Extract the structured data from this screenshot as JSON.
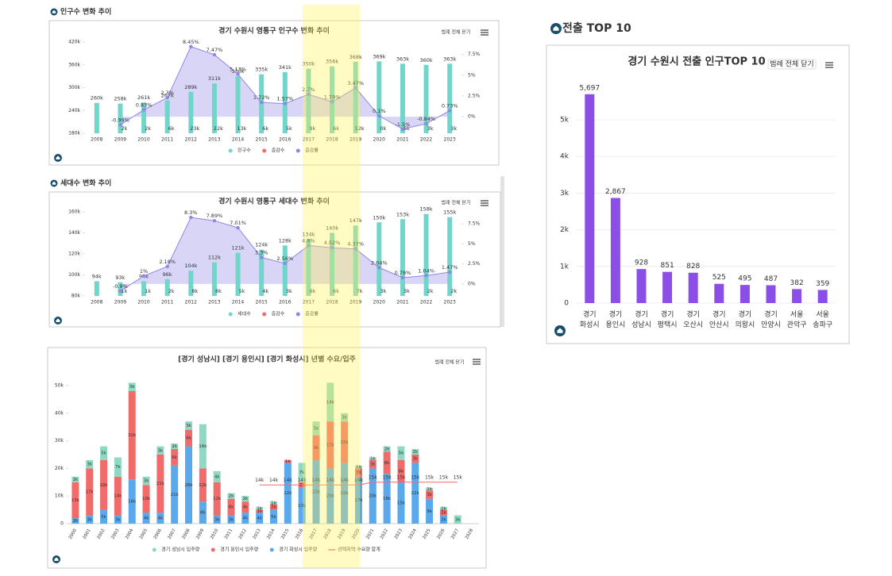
{
  "chart_data": [
    {
      "type": "combo",
      "section": "인구수 변화 추이",
      "title": "경기 수원시 영통구 인구수 변화 추이",
      "legend_button": "범례 전체 닫기",
      "categories": [
        "2008",
        "2009",
        "2010",
        "2011",
        "2012",
        "2013",
        "2014",
        "2015",
        "2016",
        "2017",
        "2018",
        "2019",
        "2020",
        "2021",
        "2022",
        "2023"
      ],
      "series": [
        {
          "name": "인구수",
          "color": "#72d5c9",
          "values": [
            260000,
            258000,
            261000,
            267000,
            289000,
            311000,
            330000,
            335000,
            341000,
            350000,
            356000,
            368000,
            369000,
            363000,
            360000,
            363000
          ],
          "value_labels": [
            "260k",
            "258k",
            "261k",
            "267k",
            "289k",
            "311k",
            "330k",
            "335k",
            "341k",
            "350k",
            "356k",
            "368k",
            "369k",
            "363k",
            "360k",
            "363k"
          ]
        },
        {
          "name": "증감수",
          "color": "#f26b6b",
          "values": [
            null,
            2000,
            2000,
            6000,
            23000,
            22000,
            13000,
            6000,
            5000,
            9000,
            6000,
            12000,
            0,
            5000,
            3000,
            3000
          ],
          "value_labels": [
            null,
            "2k",
            "2k",
            "6k",
            "23k",
            "22k",
            "13k",
            "6k",
            "5k",
            "9k",
            "6k",
            "12k",
            "0k",
            "5k",
            "3k",
            "3k"
          ]
        },
        {
          "name": "증감률",
          "color": "#8f86e8",
          "axis": "y2",
          "values": [
            null,
            -0.99,
            0.83,
            2.3,
            8.45,
            7.47,
            5.13,
            1.72,
            1.57,
            2.7,
            1.79,
            3.47,
            0.1,
            -1.5,
            -0.84,
            0.73
          ],
          "value_labels": [
            null,
            "-0.99%",
            "0.83%",
            "2.3%",
            "8.45%",
            "7.47%",
            "5.13%",
            "1.72%",
            "1.57%",
            "2.7%",
            "1.79%",
            "3.47%",
            "0.1%",
            "-1.5%",
            "-0.84%",
            "0.73%"
          ]
        }
      ],
      "ylim": [
        180000,
        420000
      ],
      "yticks": [
        {
          "value": 180000,
          "label": "180k"
        },
        {
          "value": 240000,
          "label": "240k"
        },
        {
          "value": 300000,
          "label": "300k"
        },
        {
          "value": 360000,
          "label": "360k"
        },
        {
          "value": 420000,
          "label": "420k"
        }
      ],
      "y2lim": [
        -2,
        9
      ],
      "y2ticks": [
        {
          "value": 0,
          "label": "0%"
        },
        {
          "value": 2.5,
          "label": "2.5%"
        },
        {
          "value": 5,
          "label": "5%"
        },
        {
          "value": 7.5,
          "label": "7.5%"
        }
      ],
      "grid": false
    },
    {
      "type": "combo",
      "section": "세대수 변화 추이",
      "title": "경기 수원시 영통구 세대수 변화 추이",
      "legend_button": "범례 전체 닫기",
      "categories": [
        "2008",
        "2009",
        "2010",
        "2011",
        "2012",
        "2013",
        "2014",
        "2015",
        "2016",
        "2017",
        "2018",
        "2019",
        "2020",
        "2021",
        "2022",
        "2023"
      ],
      "series": [
        {
          "name": "세대수",
          "color": "#72d5c9",
          "values": [
            94000,
            93000,
            94000,
            96000,
            104000,
            112000,
            121000,
            124000,
            128000,
            134000,
            140000,
            147000,
            150000,
            153000,
            158000,
            155000
          ],
          "value_labels": [
            "94k",
            "93k",
            "94k",
            "96k",
            "104k",
            "112k",
            "121k",
            "124k",
            "128k",
            "134k",
            "140k",
            "147k",
            "150k",
            "153k",
            "158k",
            "155k"
          ]
        },
        {
          "name": "증감수",
          "color": "#f26b6b",
          "values": [
            null,
            1000,
            1000,
            2000,
            8000,
            8000,
            5000,
            4000,
            3000,
            6000,
            6000,
            7000,
            3000,
            3000,
            2000,
            2000
          ],
          "value_labels": [
            null,
            "1k",
            "1k",
            "2k",
            "8k",
            "8k",
            "5k",
            "4k",
            "3k",
            "6k",
            "6k",
            "7k",
            "3k",
            "3k",
            "2k",
            "2k"
          ]
        },
        {
          "name": "증감률",
          "color": "#8f86e8",
          "axis": "y2",
          "values": [
            null,
            -0.9,
            1,
            2.18,
            8.3,
            7.89,
            7.01,
            3.3,
            2.56,
            4.8,
            4.52,
            4.37,
            2.04,
            0.78,
            1.04,
            1.47
          ],
          "value_labels": [
            null,
            "-0.9%",
            "1%",
            "2.18%",
            "8.3%",
            "7.89%",
            "7.01%",
            "3.3%",
            "2.56%",
            "4.8%",
            "4.52%",
            "4.37%",
            "2.04%",
            "0.78%",
            "1.04%",
            "1.47%"
          ]
        }
      ],
      "ylim": [
        80000,
        160000
      ],
      "yticks": [
        {
          "value": 80000,
          "label": "80k"
        },
        {
          "value": 100000,
          "label": "100k"
        },
        {
          "value": 120000,
          "label": "120k"
        },
        {
          "value": 140000,
          "label": "140k"
        },
        {
          "value": 160000,
          "label": "160k"
        }
      ],
      "y2lim": [
        -1.5,
        9
      ],
      "y2ticks": [
        {
          "value": 0,
          "label": "0%"
        },
        {
          "value": 2.5,
          "label": "2.5%"
        },
        {
          "value": 5,
          "label": "5%"
        },
        {
          "value": 7.5,
          "label": "7.5%"
        }
      ],
      "grid": false
    },
    {
      "type": "stacked_bar",
      "title": "[경기 성남시] [경기 용인시] [경기 화성시] 년별 수요/입주",
      "legend_button": "범례 전체 닫기",
      "categories": [
        "2000",
        "2001",
        "2002",
        "2003",
        "2004",
        "2005",
        "2006",
        "2007",
        "2008",
        "2009",
        "2010",
        "2011",
        "2012",
        "2013",
        "2014",
        "2015",
        "2016",
        "2017",
        "2018",
        "2019",
        "2020",
        "2021",
        "2022",
        "2023",
        "2024",
        "2025",
        "2026",
        "2027",
        "2028"
      ],
      "series": [
        {
          "name": "경기 성남시 입주량",
          "color": "#8fd9c2",
          "values": [
            2000,
            3000,
            5000,
            7000,
            3000,
            3000,
            3000,
            2000,
            3000,
            16000,
            4000,
            2000,
            2000,
            1000,
            1000,
            0,
            7000,
            5000,
            14000,
            3000,
            1000,
            1000,
            2000,
            5000,
            2000,
            1000,
            1000,
            3000,
            0
          ],
          "value_labels": [
            "2k",
            "3k",
            "5k",
            "7k",
            "3k",
            "3k",
            "3k",
            "2k",
            "3k",
            "16k",
            "4k",
            "2k",
            "2k",
            "1k",
            "1k",
            null,
            "7k",
            "5k",
            "14k",
            "3k",
            "1k",
            "1k",
            "2k",
            "5k",
            "2k",
            "1k",
            "1k",
            "3k",
            null
          ]
        },
        {
          "name": "경기 용인시 입주량",
          "color": "#f26b6b",
          "values": [
            13000,
            17000,
            18000,
            14000,
            32000,
            10000,
            21000,
            6000,
            6000,
            12000,
            12000,
            6000,
            4000,
            1000,
            2000,
            1000,
            2000,
            9000,
            17000,
            15000,
            3000,
            3000,
            8000,
            8000,
            3000,
            3000,
            2000,
            0,
            0
          ],
          "value_labels": [
            "13k",
            "17k",
            "18k",
            "14k",
            "32k",
            "10k",
            "21k",
            "6k",
            "6k",
            "12k",
            "12k",
            "6k",
            "4k",
            "1k",
            "2k",
            "1k",
            "2k",
            "9k",
            "17k",
            "15k",
            "3k",
            "3k",
            "8k",
            "8k",
            "3k",
            "3k",
            "2k",
            null,
            null
          ]
        },
        {
          "name": "경기 화성시 입주량",
          "color": "#5aa9ec",
          "values": [
            2000,
            3000,
            5000,
            3000,
            16000,
            4000,
            4000,
            21000,
            28000,
            8000,
            3000,
            3000,
            4000,
            4000,
            5000,
            22000,
            13000,
            23000,
            20000,
            22000,
            17000,
            20000,
            18000,
            15000,
            22000,
            9000,
            3000,
            0,
            0
          ],
          "value_labels": [
            "2k",
            "3k",
            "5k",
            "3k",
            "16k",
            "4k",
            "4k",
            "21k",
            "28k",
            "8k",
            "3k",
            "3k",
            "4k",
            "4k",
            "5k",
            "22k",
            "13k",
            "23k",
            "20k",
            "22k",
            "17k",
            "20k",
            "18k",
            "15k",
            "22k",
            "9k",
            "3k",
            null,
            null
          ]
        },
        {
          "name": "선택지역 수요량 합계",
          "color": "#f26b6b",
          "type": "line",
          "values": [
            null,
            null,
            null,
            null,
            null,
            null,
            null,
            null,
            null,
            null,
            null,
            null,
            null,
            14000,
            14000,
            14000,
            14000,
            14000,
            14000,
            14000,
            14000,
            15000,
            15000,
            15000,
            15000,
            15000,
            15000,
            15000,
            null
          ],
          "value_labels": [
            null,
            null,
            null,
            null,
            null,
            null,
            null,
            null,
            null,
            null,
            null,
            null,
            null,
            "14k",
            "14k",
            "14k",
            "14k",
            "14k",
            "14k",
            "14k",
            "14k",
            "15k",
            "15k",
            "15k",
            "15k",
            "15k",
            "15k",
            "15k",
            null
          ]
        }
      ],
      "ylim": [
        0,
        52000
      ],
      "yticks": [
        0,
        {
          "value": 10000,
          "label": "10k"
        },
        {
          "value": 20000,
          "label": "20k"
        },
        {
          "value": 30000,
          "label": "30k"
        },
        {
          "value": 40000,
          "label": "40k"
        },
        {
          "value": 50000,
          "label": "50k"
        }
      ],
      "grid": false
    },
    {
      "type": "bar",
      "section": "전출 TOP 10",
      "title": "경기 수원시 전출 인구TOP 10",
      "legend_button": "범례 전체 닫기",
      "categories": [
        "경기 화성시",
        "경기 용인시",
        "경기 성남시",
        "경기 평택시",
        "경기 오산시",
        "경기 안산시",
        "경기 의왕시",
        "경기 안양시",
        "서울 관악구",
        "서울 송파구"
      ],
      "values": [
        5697,
        2867,
        928,
        851,
        828,
        525,
        495,
        487,
        382,
        359
      ],
      "value_labels": [
        "5,697",
        "2,867",
        "928",
        "851",
        "828",
        "525",
        "495",
        "487",
        "382",
        "359"
      ],
      "color": "#8b4fe8",
      "ylim": [
        0,
        5800
      ],
      "yticks": [
        0,
        {
          "value": 1000,
          "label": "1k"
        },
        {
          "value": 2000,
          "label": "2k"
        },
        {
          "value": 3000,
          "label": "3k"
        },
        {
          "value": 4000,
          "label": "4k"
        },
        {
          "value": 5000,
          "label": "5k"
        }
      ],
      "grid": true
    }
  ]
}
